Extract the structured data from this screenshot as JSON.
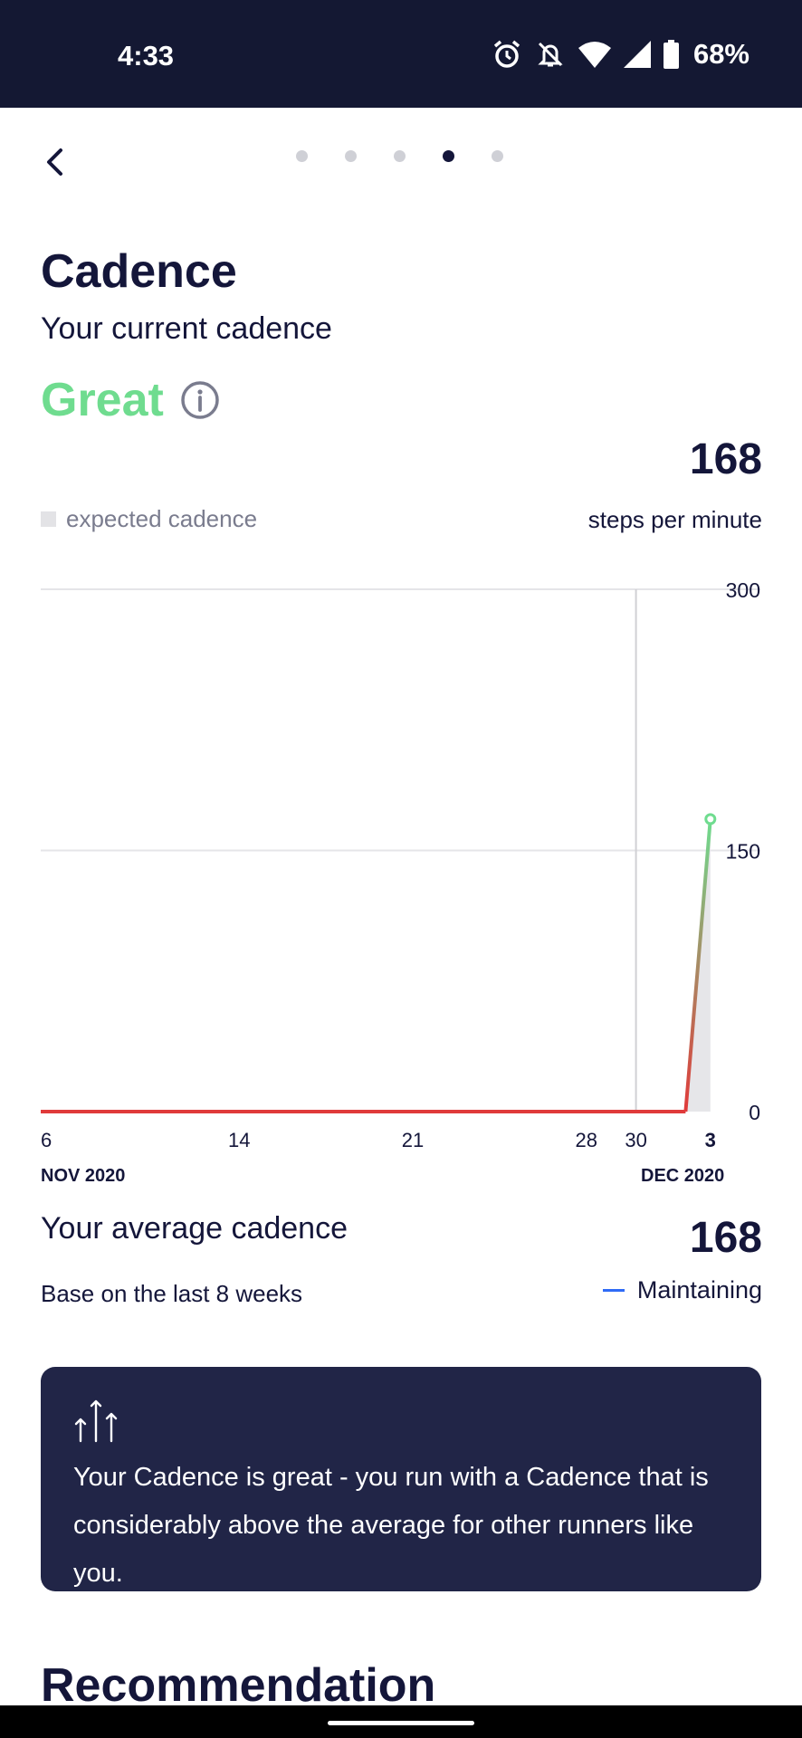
{
  "status_bar": {
    "time": "4:33",
    "battery": "68%"
  },
  "pager": {
    "count": 5,
    "active_index": 3
  },
  "header": {
    "title": "Cadence",
    "subtitle": "Your current cadence",
    "rating": "Great"
  },
  "current": {
    "value": "168",
    "unit": "steps per minute"
  },
  "legend": {
    "expected_label": "expected cadence"
  },
  "colors": {
    "rating_green": "#6fdc8f",
    "line_red": "#e03a3a",
    "line_green": "#6fdc8f",
    "navy": "#14163a",
    "card_bg": "#212547",
    "trend_blue": "#2f6bf6"
  },
  "chart_data": {
    "type": "line",
    "x_ticks": [
      "6",
      "14",
      "21",
      "28",
      "30",
      "3"
    ],
    "x_months": [
      "NOV 2020",
      "DEC 2020"
    ],
    "y_ticks": [
      "300",
      "150",
      "0"
    ],
    "ylim": [
      0,
      300
    ],
    "ylabel": "steps per minute",
    "today_marker": "30",
    "series": [
      {
        "values": [
          {
            "x": "2020-11-06",
            "y": 0
          },
          {
            "x": "2020-12-02",
            "y": 0
          },
          {
            "x": "2020-12-03",
            "y": 168
          }
        ]
      }
    ]
  },
  "average": {
    "title": "Your average cadence",
    "value": "168",
    "subtitle": "Base on the last 8 weeks",
    "trend": "Maintaining"
  },
  "insight": {
    "icon": "arrows-up-icon",
    "text": "Your Cadence is great - you run with a Cadence that is considerably above the average for other runners like you."
  },
  "next_section": {
    "title": "Recommendation"
  }
}
